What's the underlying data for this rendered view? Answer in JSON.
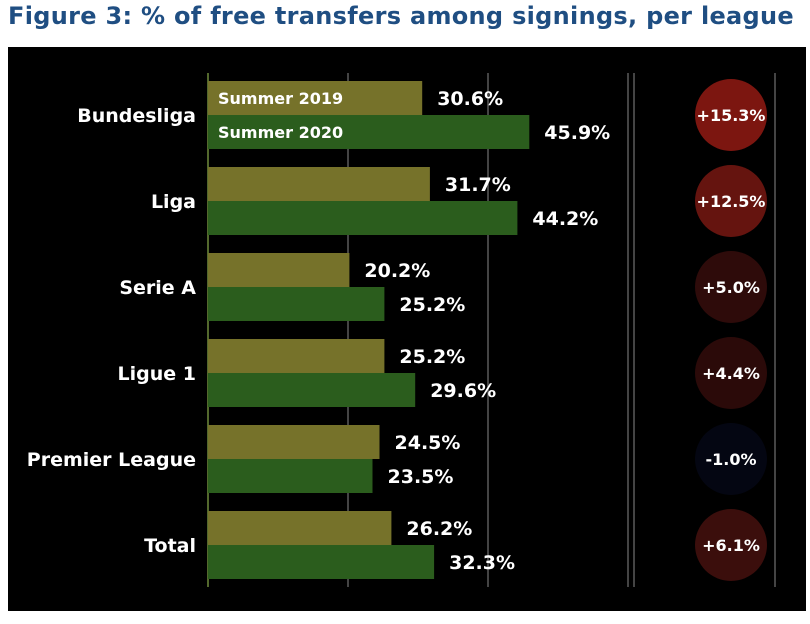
{
  "title": "Figure 3: % of free transfers among signings, per league",
  "chart_data": {
    "type": "bar",
    "orientation": "horizontal",
    "categories": [
      "Bundesliga",
      "Liga",
      "Serie A",
      "Ligue 1",
      "Premier League",
      "Total"
    ],
    "series": [
      {
        "name": "Summer 2019",
        "values": [
          30.6,
          31.7,
          20.2,
          25.2,
          24.5,
          26.2
        ],
        "labels": [
          "30.6%",
          "31.7%",
          "20.2%",
          "25.2%",
          "24.5%",
          "26.2%"
        ],
        "color": "#76722a"
      },
      {
        "name": "Summer 2020",
        "values": [
          45.9,
          44.2,
          25.2,
          29.6,
          23.5,
          32.3
        ],
        "labels": [
          "45.9%",
          "44.2%",
          "25.2%",
          "29.6%",
          "23.5%",
          "32.3%"
        ],
        "color": "#2b5d1d"
      }
    ],
    "change": {
      "values": [
        15.3,
        12.5,
        5.0,
        4.4,
        -1.0,
        6.1
      ],
      "labels": [
        "+15.3%",
        "+12.5%",
        "+5.0%",
        "+4.4%",
        "-1.0%",
        "+6.1%"
      ],
      "colors": [
        "#7c1610",
        "#65140f",
        "#2e0b0a",
        "#2b0a09",
        "#040612",
        "#3b0e0c"
      ]
    },
    "xlim": [
      0,
      60
    ],
    "grid": true,
    "legend": "inside-first-category",
    "background": "#000000"
  }
}
